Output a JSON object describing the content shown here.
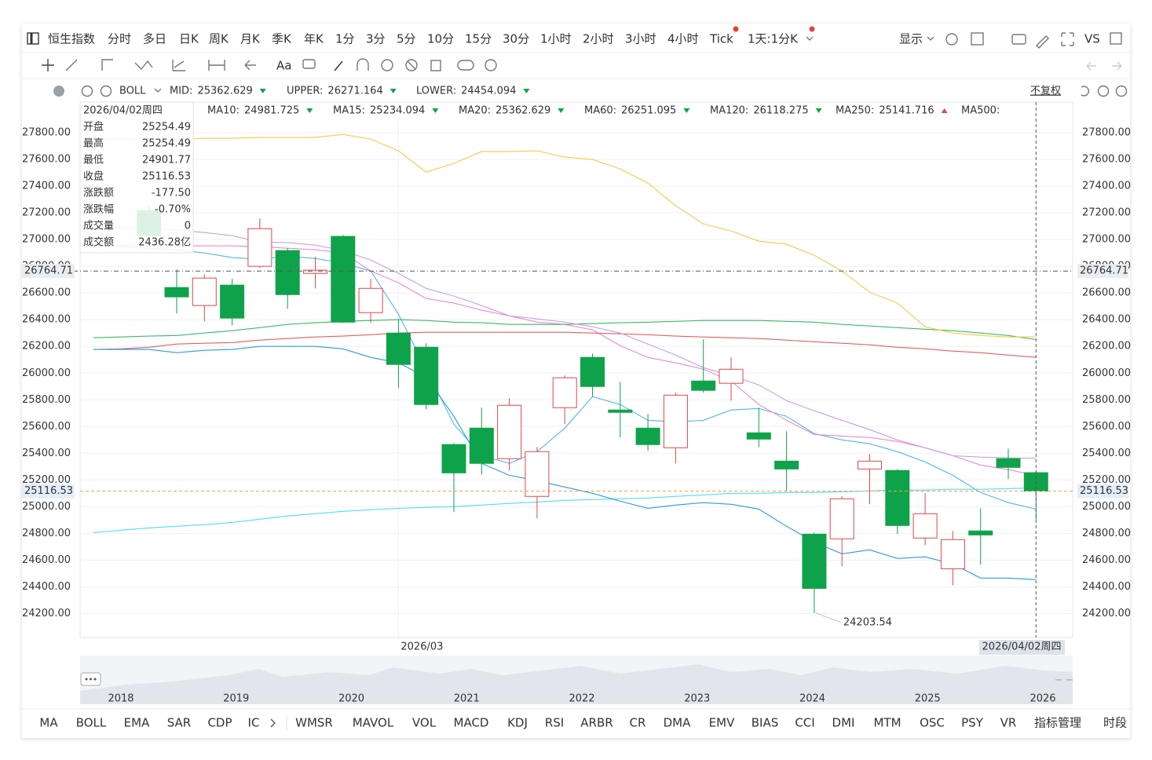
{
  "symbol": "恒生指数",
  "toolbar": {
    "tabs": [
      "分时",
      "多日",
      "日K",
      "周K",
      "月K",
      "季K",
      "年K",
      "1分",
      "3分",
      "5分",
      "10分",
      "15分",
      "30分",
      "1小时",
      "2小时",
      "3小时",
      "4小时",
      "Tick",
      "1天:1分K"
    ],
    "active": "日K",
    "display": "显示",
    "compare": "VS"
  },
  "tools_text": "Aa",
  "indicator_bar": {
    "name": "BOLL",
    "adjust": "不复权"
  },
  "info": {
    "date": "2026/04/02周四",
    "rows": [
      {
        "label": "开盘",
        "value": "25254.49",
        "color": "#0ea34a"
      },
      {
        "label": "最高",
        "value": "25254.49",
        "color": "#0ea34a"
      },
      {
        "label": "最低",
        "value": "24901.77",
        "color": "#0ea34a"
      },
      {
        "label": "收盘",
        "value": "25116.53",
        "color": "#0ea34a"
      },
      {
        "label": "涨跌额",
        "value": "-177.50",
        "color": "#0ea34a"
      },
      {
        "label": "涨跌幅",
        "value": "-0.70%",
        "color": "#0ea34a"
      },
      {
        "label": "成交量",
        "value": "0",
        "color": "#555555"
      },
      {
        "label": "成交额",
        "value": "2436.28亿",
        "color": "#555555"
      }
    ]
  },
  "navigator": {
    "years": [
      "2018",
      "2019",
      "2020",
      "2021",
      "2022",
      "2023",
      "2024",
      "2025",
      "2026"
    ]
  },
  "indicators": [
    {
      "label": "MA",
      "active": true
    },
    {
      "label": "BOLL",
      "active": true
    },
    {
      "label": "EMA"
    },
    {
      "label": "SAR"
    },
    {
      "label": "CDP"
    },
    {
      "label": "IC"
    },
    {
      "label": "WMSR"
    },
    {
      "label": "MAVOL"
    },
    {
      "label": "VOL"
    },
    {
      "label": "MACD"
    },
    {
      "label": "KDJ"
    },
    {
      "label": "RSI"
    },
    {
      "label": "ARBR"
    },
    {
      "label": "CR"
    },
    {
      "label": "DMA"
    },
    {
      "label": "EMV"
    },
    {
      "label": "BIAS"
    },
    {
      "label": "CCI"
    },
    {
      "label": "DMI"
    },
    {
      "label": "MTM"
    },
    {
      "label": "OSC"
    },
    {
      "label": "PSY"
    },
    {
      "label": "VR"
    },
    {
      "label": "指标管理",
      "active": true
    },
    {
      "label": "时段",
      "active": true
    }
  ],
  "chart_data": {
    "type": "candlestick",
    "categories": [
      null,
      null,
      null,
      null,
      null,
      null,
      null,
      null,
      null,
      null,
      null,
      "2026/03",
      null,
      null,
      null,
      null,
      null,
      null,
      null,
      null,
      null,
      null,
      null,
      null,
      null,
      null,
      null,
      null,
      null,
      null,
      null,
      null,
      null,
      null,
      "2026/04/02周四"
    ],
    "open": [
      null,
      null,
      27218,
      26641,
      26506,
      26659,
      26800,
      26918,
      26747,
      27024,
      26453,
      26300,
      26194,
      25465,
      25588,
      25359,
      25077,
      25741,
      26118,
      25724,
      25588,
      25441,
      25941,
      25924,
      25553,
      25341,
      24794,
      24759,
      25282,
      25271,
      24765,
      24535,
      24818,
      25359,
      25254.49
    ],
    "high": [
      null,
      null,
      27250,
      26776,
      26741,
      26706,
      27159,
      26935,
      26871,
      27035,
      26706,
      26406,
      26224,
      25477,
      25741,
      25812,
      25447,
      25982,
      26147,
      25935,
      25694,
      25853,
      26253,
      26118,
      25741,
      25565,
      24806,
      25077,
      25394,
      25282,
      25100,
      24818,
      24988,
      25435,
      25254.49
    ],
    "low": [
      null,
      null,
      27000,
      26447,
      26388,
      26359,
      26788,
      26482,
      26635,
      26377,
      26377,
      25888,
      25729,
      24959,
      25241,
      25271,
      24912,
      25618,
      25824,
      25518,
      25418,
      25324,
      25853,
      25794,
      25447,
      25118,
      24203.54,
      24553,
      25018,
      24794,
      24712,
      24412,
      24565,
      25206,
      24901.77
    ],
    "close": [
      null,
      null,
      27029,
      26571,
      26712,
      26412,
      27082,
      26588,
      26771,
      26382,
      26635,
      26065,
      25765,
      25253,
      25324,
      25759,
      25412,
      25965,
      25900,
      25706,
      25465,
      25835,
      25871,
      26029,
      25506,
      25282,
      24388,
      25059,
      25341,
      24859,
      24947,
      24753,
      24788,
      25294,
      25116.53
    ],
    "up_color": "#e0474c",
    "down_color": "#0ea34a",
    "ylim": [
      24020,
      28030
    ],
    "yticks": [
      {
        "value": 24200,
        "label": "24200.00"
      },
      {
        "value": 24400,
        "label": "24400.00"
      },
      {
        "value": 24600,
        "label": "24600.00"
      },
      {
        "value": 24800,
        "label": "24800.00"
      },
      {
        "value": 25000,
        "label": "25000.00"
      },
      {
        "value": 25200,
        "label": "25200.00"
      },
      {
        "value": 25400,
        "label": "25400.00"
      },
      {
        "value": 25600,
        "label": "25600.00"
      },
      {
        "value": 25800,
        "label": "25800.00"
      },
      {
        "value": 26000,
        "label": "26000.00"
      },
      {
        "value": 26200,
        "label": "26200.00"
      },
      {
        "value": 26400,
        "label": "26400.00"
      },
      {
        "value": 26600,
        "label": "26600.00"
      },
      {
        "value": 26800,
        "label": "26800.00"
      },
      {
        "value": 27000,
        "label": "27000.00"
      },
      {
        "value": 27200,
        "label": "27200.00"
      },
      {
        "value": 27400,
        "label": "27400.00"
      },
      {
        "value": 27600,
        "label": "27600.00"
      },
      {
        "value": 27800,
        "label": "27800.00"
      }
    ],
    "grid": true,
    "crosshair": 26764.71,
    "bands": [
      {
        "name": "MID:",
        "value": 25362.629,
        "text_color": "#f29cc8",
        "color": "#c9a0e0",
        "trend": "down",
        "values": [
          27100,
          27088,
          27077,
          27071,
          27053,
          27029,
          26982,
          26977,
          26959,
          26918,
          26847,
          26747,
          26635,
          26577,
          26506,
          26429,
          26406,
          26382,
          26347,
          26300,
          26218,
          26135,
          26041,
          25982,
          25912,
          25794,
          25718,
          25647,
          25577,
          25500,
          25441,
          25382,
          25371,
          25365,
          25362.629
        ]
      },
      {
        "name": "UPPER:",
        "value": 26271.164,
        "text_color": "#f0b400",
        "color": "#f7c948",
        "trend": "down",
        "values": [
          27753,
          27753,
          27753,
          27753,
          27759,
          27759,
          27765,
          27765,
          27765,
          27788,
          27753,
          27665,
          27506,
          27571,
          27659,
          27659,
          27665,
          27618,
          27600,
          27529,
          27424,
          27253,
          27118,
          27065,
          26988,
          26965,
          26882,
          26765,
          26606,
          26524,
          26347,
          26300,
          26282,
          26271,
          26271.164
        ]
      },
      {
        "name": "LOWER:",
        "value": 24454.094,
        "text_color": "#2b86d6",
        "color": "#2b9be0",
        "trend": "down",
        "values": [
          26177,
          26177,
          26177,
          26153,
          26171,
          26177,
          26200,
          26200,
          26200,
          26182,
          26118,
          26077,
          25971,
          25677,
          25324,
          25235,
          25194,
          25147,
          25100,
          25041,
          24988,
          25012,
          25030,
          25018,
          24982,
          24853,
          24735,
          24647,
          24677,
          24612,
          24624,
          24571,
          24465,
          24465,
          24454.094
        ]
      }
    ],
    "series": [
      {
        "name": "MA10:",
        "value": 24981.725,
        "text_color": "#2196d3",
        "color": "#52b6ea",
        "trend": "down",
        "values": [
          26959,
          26947,
          26935,
          26924,
          26900,
          26865,
          26853,
          26877,
          26859,
          26824,
          26765,
          26441,
          26029,
          25618,
          25382,
          25324,
          25412,
          25588,
          25824,
          25765,
          25647,
          25635,
          25647,
          25724,
          25735,
          25677,
          25547,
          25500,
          25471,
          25412,
          25335,
          25235,
          25106,
          25030,
          24981.725
        ]
      },
      {
        "name": "MA15:",
        "value": 25234.094,
        "text_color": "#e07ed0",
        "color": "#e88ad6",
        "trend": "down",
        "values": [
          26959,
          26959,
          26953,
          26953,
          26953,
          26953,
          26947,
          26935,
          26924,
          26900,
          26765,
          26677,
          26559,
          26524,
          26471,
          26429,
          26382,
          26365,
          26324,
          26206,
          26118,
          26077,
          26029,
          25941,
          25765,
          25647,
          25541,
          25529,
          25518,
          25488,
          25441,
          25382,
          25312,
          25277,
          25234.094
        ]
      },
      {
        "name": "MA20:",
        "value": 25362.629,
        "text_color": "#2196d3",
        "trend": "down"
      },
      {
        "name": "MA60:",
        "value": 26251.095,
        "text_color": "#2eb05a",
        "color": "#3cb96a",
        "trend": "down",
        "values": [
          26265,
          26271,
          26277,
          26282,
          26300,
          26318,
          26341,
          26365,
          26377,
          26388,
          26394,
          26400,
          26394,
          26382,
          26377,
          26365,
          26365,
          26365,
          26371,
          26377,
          26382,
          26388,
          26394,
          26394,
          26394,
          26388,
          26382,
          26365,
          26353,
          26341,
          26329,
          26318,
          26300,
          26282,
          26251.095
        ]
      },
      {
        "name": "MA120:",
        "value": 26118.275,
        "text_color": "#e0474c",
        "color": "#e36060",
        "trend": "down",
        "values": [
          26177,
          26182,
          26194,
          26218,
          26224,
          26229,
          26247,
          26259,
          26271,
          26277,
          26288,
          26300,
          26306,
          26306,
          26306,
          26306,
          26306,
          26306,
          26300,
          26294,
          26288,
          26277,
          26271,
          26265,
          26259,
          26247,
          26235,
          26224,
          26212,
          26194,
          26182,
          26165,
          26153,
          26135,
          26118.275
        ]
      },
      {
        "name": "MA250:",
        "value": 25141.716,
        "text_color": "#36c8e6",
        "color": "#4fe0ef",
        "trend": "up",
        "values": [
          24806,
          24824,
          24841,
          24853,
          24865,
          24882,
          24906,
          24930,
          24947,
          24965,
          24977,
          24988,
          24994,
          25000,
          25012,
          25024,
          25035,
          25047,
          25053,
          25059,
          25065,
          25077,
          25088,
          25100,
          25100,
          25106,
          25106,
          25112,
          25118,
          25124,
          25124,
          25130,
          25130,
          25135,
          25141.716
        ]
      },
      {
        "name": "MA500:",
        "text_color": "#f5e0a8"
      }
    ]
  }
}
